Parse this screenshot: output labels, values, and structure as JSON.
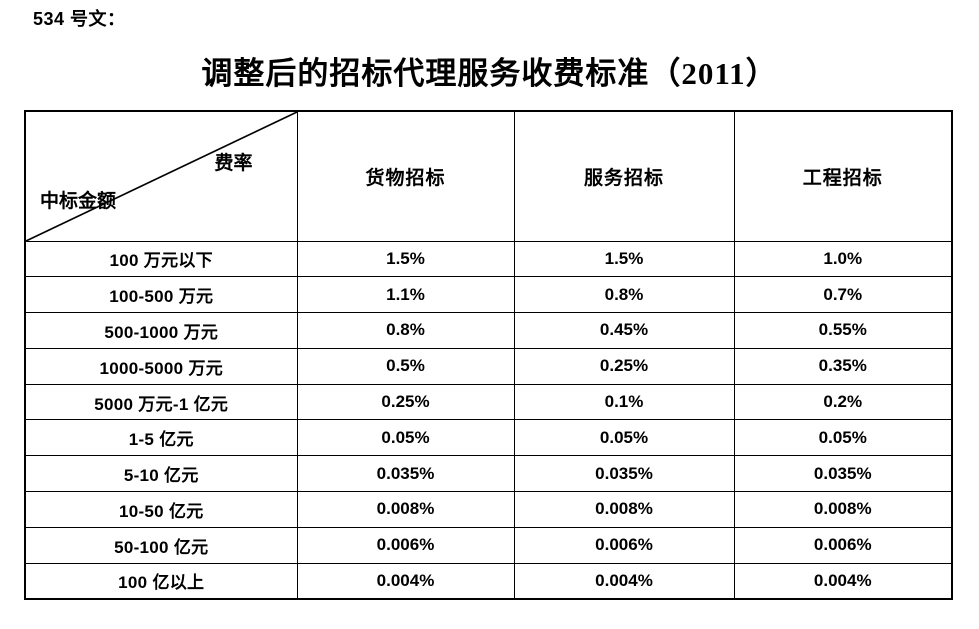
{
  "page": {
    "doc_label": "534 号文：",
    "title": "调整后的招标代理服务收费标准（2011）"
  },
  "colors": {
    "background": "#ffffff",
    "text": "#000000",
    "table_border": "#000000"
  },
  "table": {
    "corner": {
      "top_right_label": "费率",
      "bottom_left_label": "中标金额"
    },
    "columns": [
      "货物招标",
      "服务招标",
      "工程招标"
    ],
    "rows": [
      {
        "amount": "100 万元以下",
        "values": [
          "1.5%",
          "1.5%",
          "1.0%"
        ]
      },
      {
        "amount": "100-500 万元",
        "values": [
          "1.1%",
          "0.8%",
          "0.7%"
        ]
      },
      {
        "amount": "500-1000 万元",
        "values": [
          "0.8%",
          "0.45%",
          "0.55%"
        ]
      },
      {
        "amount": "1000-5000 万元",
        "values": [
          "0.5%",
          "0.25%",
          "0.35%"
        ]
      },
      {
        "amount": "5000 万元-1 亿元",
        "values": [
          "0.25%",
          "0.1%",
          "0.2%"
        ]
      },
      {
        "amount": "1-5 亿元",
        "values": [
          "0.05%",
          "0.05%",
          "0.05%"
        ]
      },
      {
        "amount": "5-10 亿元",
        "values": [
          "0.035%",
          "0.035%",
          "0.035%"
        ]
      },
      {
        "amount": "10-50 亿元",
        "values": [
          "0.008%",
          "0.008%",
          "0.008%"
        ]
      },
      {
        "amount": "50-100 亿元",
        "values": [
          "0.006%",
          "0.006%",
          "0.006%"
        ]
      },
      {
        "amount": "100 亿以上",
        "values": [
          "0.004%",
          "0.004%",
          "0.004%"
        ]
      }
    ]
  }
}
